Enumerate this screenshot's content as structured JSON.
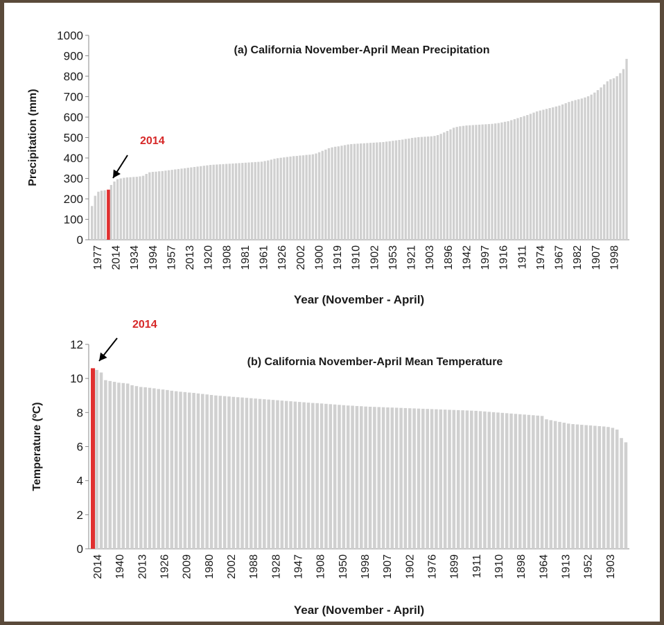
{
  "colors": {
    "bar": "#d0d0d0",
    "highlight": "#e03030",
    "highlight_label": "#d62828",
    "axis": "#8a8a8a",
    "text": "#1a1a1a"
  },
  "chart_data": [
    {
      "type": "bar",
      "title": "(a)  California  November-April Mean Precipitation",
      "xlabel": "Year  (November - April)",
      "ylabel": "Precipitation (mm)",
      "ylim": [
        0,
        1000
      ],
      "yticks": [
        "0",
        "100",
        "200",
        "300",
        "400",
        "500",
        "600",
        "700",
        "800",
        "900",
        "1000"
      ],
      "tick_labels": [
        "1977",
        "2014",
        "1934",
        "1994",
        "1957",
        "2013",
        "1920",
        "1908",
        "1981",
        "1961",
        "1926",
        "2002",
        "1900",
        "1919",
        "1910",
        "1902",
        "1953",
        "1921",
        "1903",
        "1896",
        "1942",
        "1997",
        "1916",
        "1911",
        "1974",
        "1967",
        "1982",
        "1907",
        "1998"
      ],
      "highlight": {
        "label": "2014",
        "index": 5,
        "value": 245
      },
      "values": [
        165,
        215,
        235,
        240,
        242,
        245,
        268,
        285,
        296,
        300,
        303,
        305,
        306,
        307,
        308,
        310,
        313,
        322,
        330,
        332,
        333,
        335,
        336,
        338,
        340,
        342,
        344,
        346,
        348,
        350,
        352,
        354,
        356,
        358,
        360,
        362,
        364,
        366,
        367,
        368,
        369,
        370,
        371,
        372,
        373,
        374,
        375,
        376,
        377,
        378,
        379,
        380,
        381,
        382,
        385,
        388,
        392,
        396,
        399,
        401,
        403,
        405,
        407,
        409,
        410,
        412,
        413,
        415,
        416,
        418,
        422,
        428,
        435,
        441,
        448,
        452,
        455,
        457,
        460,
        463,
        466,
        468,
        469,
        470,
        471,
        472,
        473,
        474,
        475,
        476,
        477,
        478,
        480,
        482,
        484,
        486,
        488,
        490,
        493,
        495,
        498,
        500,
        502,
        503,
        504,
        505,
        506,
        508,
        512,
        518,
        525,
        532,
        540,
        548,
        552,
        555,
        557,
        559,
        560,
        561,
        562,
        563,
        564,
        565,
        566,
        567,
        569,
        571,
        574,
        577,
        580,
        585,
        590,
        595,
        600,
        605,
        610,
        616,
        622,
        628,
        632,
        636,
        640,
        644,
        648,
        652,
        656,
        662,
        668,
        674,
        679,
        683,
        687,
        691,
        696,
        702,
        710,
        720,
        732,
        745,
        760,
        775,
        785,
        790,
        800,
        815,
        835,
        885
      ]
    },
    {
      "type": "bar",
      "title": "(b)  California  November-April Mean Temperature",
      "xlabel": "Year  (November - April)",
      "ylabel": "Temperature (ºC)",
      "ylim": [
        0,
        12
      ],
      "yticks": [
        "0",
        "2",
        "4",
        "6",
        "8",
        "10",
        "12"
      ],
      "tick_labels": [
        "2014",
        "1940",
        "2013",
        "1926",
        "2009",
        "1980",
        "2002",
        "1988",
        "1928",
        "1947",
        "1908",
        "1950",
        "1998",
        "1907",
        "1902",
        "1976",
        "1899",
        "1911",
        "1910",
        "1898",
        "1964",
        "1913",
        "1952",
        "1903"
      ],
      "highlight": {
        "label": "2014",
        "index": 0,
        "value": 10.6
      },
      "values": [
        10.6,
        10.5,
        10.35,
        9.9,
        9.85,
        9.8,
        9.75,
        9.73,
        9.7,
        9.6,
        9.55,
        9.5,
        9.48,
        9.45,
        9.42,
        9.38,
        9.35,
        9.32,
        9.28,
        9.25,
        9.22,
        9.2,
        9.17,
        9.15,
        9.12,
        9.09,
        9.06,
        9.03,
        9.0,
        8.98,
        8.96,
        8.94,
        8.92,
        8.9,
        8.88,
        8.86,
        8.84,
        8.82,
        8.8,
        8.78,
        8.76,
        8.74,
        8.72,
        8.7,
        8.68,
        8.66,
        8.64,
        8.62,
        8.6,
        8.58,
        8.56,
        8.55,
        8.53,
        8.51,
        8.49,
        8.47,
        8.45,
        8.43,
        8.41,
        8.4,
        8.38,
        8.37,
        8.35,
        8.34,
        8.33,
        8.32,
        8.31,
        8.3,
        8.29,
        8.28,
        8.27,
        8.26,
        8.25,
        8.24,
        8.23,
        8.22,
        8.21,
        8.2,
        8.19,
        8.18,
        8.17,
        8.16,
        8.15,
        8.14,
        8.13,
        8.12,
        8.11,
        8.1,
        8.08,
        8.06,
        8.04,
        8.02,
        8.0,
        7.98,
        7.96,
        7.94,
        7.92,
        7.9,
        7.88,
        7.86,
        7.84,
        7.82,
        7.8,
        7.6,
        7.55,
        7.5,
        7.45,
        7.4,
        7.35,
        7.32,
        7.3,
        7.28,
        7.26,
        7.24,
        7.22,
        7.2,
        7.18,
        7.15,
        7.1,
        7.0,
        6.5,
        6.25
      ]
    }
  ]
}
